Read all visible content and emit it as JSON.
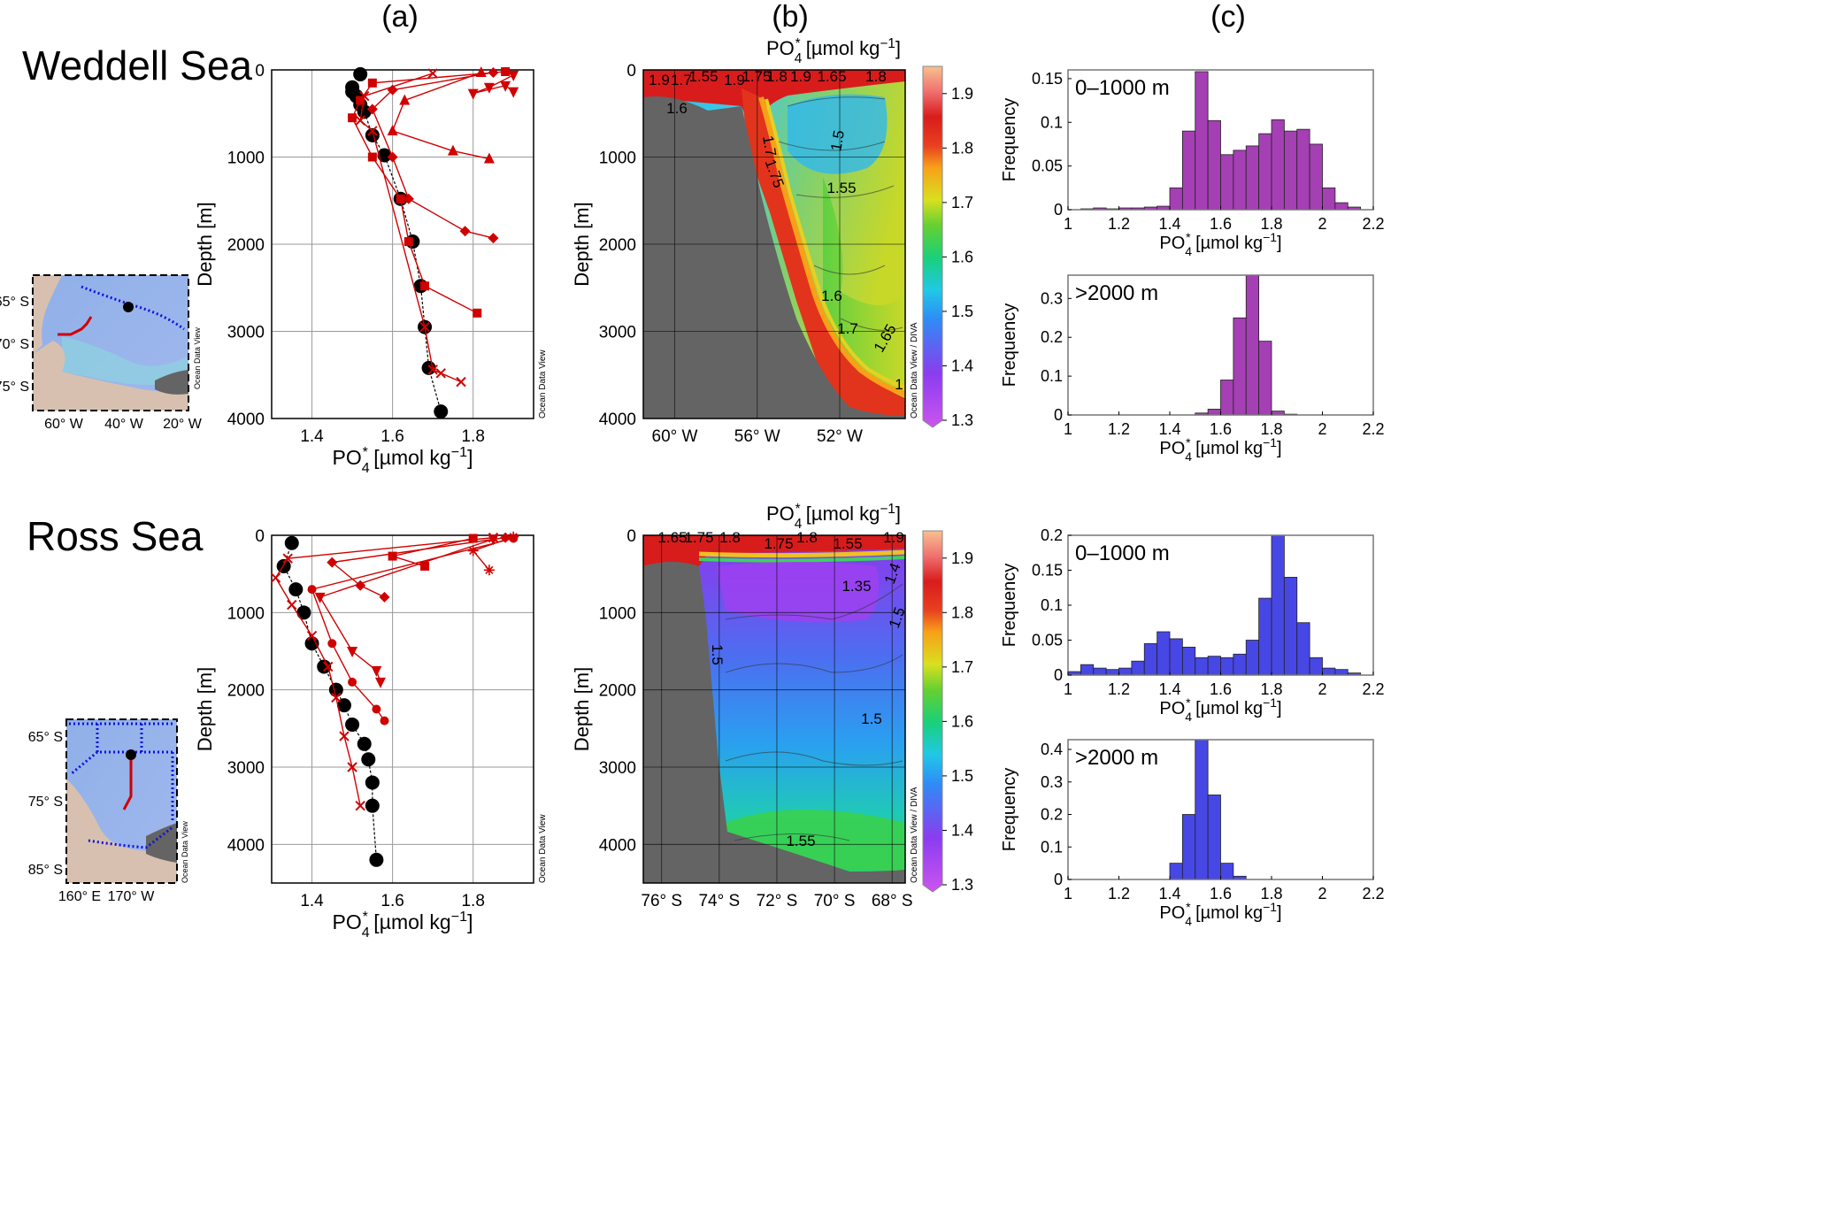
{
  "figure": {
    "column_labels": [
      "(a)",
      "(b)",
      "(c)"
    ],
    "row_titles": [
      "Weddell Sea",
      "Ross Sea"
    ],
    "odv_credit": "Ocean Data View",
    "diva_credit": "Ocean Data View / DIVA",
    "po4_label": "PO4* [µmol kg-1]",
    "depth_label": "Depth [m]",
    "freq_label": "Frequency",
    "colors": {
      "profile_red": "#d00000",
      "mean_black": "#000000",
      "weddell_hist": "#a53fb4",
      "ross_hist": "#4747e6",
      "land": "#646464"
    }
  },
  "maps": [
    {
      "lat_labels": [
        "65° S",
        "70° S",
        "75° S"
      ],
      "lon_labels": [
        "60° W",
        "40° W",
        "20° W"
      ]
    },
    {
      "lat_labels": [
        "65° S",
        "75° S",
        "85° S"
      ],
      "lon_labels": [
        "160° E",
        "170° W"
      ]
    }
  ],
  "chart_data": [
    {
      "panel": "weddell-a",
      "type": "line",
      "xlabel": "PO4* [µmol kg-1]",
      "ylabel": "Depth [m]",
      "xlim": [
        1.3,
        1.95
      ],
      "ylim": [
        4000,
        0
      ],
      "xticks": [
        "1.4",
        "1.6",
        "1.8"
      ],
      "yticks": [
        "0",
        "1000",
        "2000",
        "3000",
        "4000"
      ],
      "grid": true,
      "series": [
        {
          "marker": "circle",
          "color": "#000000",
          "x": [
            1.52,
            1.5,
            1.5,
            1.51,
            1.52,
            1.53,
            1.55,
            1.58,
            1.62,
            1.65,
            1.67,
            1.68,
            1.69,
            1.72
          ],
          "y": [
            50,
            200,
            250,
            300,
            400,
            480,
            750,
            980,
            1480,
            1970,
            2480,
            2950,
            3420,
            3920
          ]
        },
        {
          "marker": "square",
          "color": "#d00000",
          "x": [
            1.88,
            1.55,
            1.52,
            1.5,
            1.55,
            1.62,
            1.64,
            1.68,
            1.81
          ],
          "y": [
            20,
            150,
            350,
            550,
            1000,
            1480,
            1970,
            2480,
            2790
          ]
        },
        {
          "marker": "diamond",
          "color": "#d00000",
          "x": [
            1.85,
            1.6,
            1.55,
            1.6,
            1.64,
            1.78,
            1.85
          ],
          "y": [
            30,
            230,
            450,
            1000,
            1480,
            1850,
            1930
          ]
        },
        {
          "marker": "triangle-up",
          "color": "#d00000",
          "x": [
            1.82,
            1.63,
            1.6,
            1.75,
            1.84
          ],
          "y": [
            30,
            350,
            700,
            930,
            1020
          ]
        },
        {
          "marker": "triangle-down",
          "color": "#d00000",
          "x": [
            1.9,
            1.84,
            1.8,
            1.88,
            1.9
          ],
          "y": [
            60,
            200,
            270,
            180,
            250
          ]
        },
        {
          "marker": "cross",
          "color": "#d00000",
          "x": [
            1.7,
            1.53,
            1.52,
            1.55,
            1.68,
            1.7,
            1.72,
            1.77
          ],
          "y": [
            40,
            300,
            580,
            700,
            2950,
            3440,
            3480,
            3580
          ]
        }
      ]
    },
    {
      "panel": "weddell-b",
      "type": "heatmap",
      "title": "PO4* [µmol kg-1]",
      "ylabel": "Depth [m]",
      "xticks": [
        "60° W",
        "56° W",
        "52° W"
      ],
      "yticks": [
        "0",
        "1000",
        "2000",
        "3000",
        "4000"
      ],
      "ylim": [
        4000,
        0
      ],
      "colorbar": {
        "range": [
          1.3,
          1.95
        ],
        "ticks": [
          "1.3",
          "1.4",
          "1.5",
          "1.6",
          "1.7",
          "1.8",
          "1.9"
        ]
      },
      "contour_labels": [
        "1.9",
        "1.7",
        "1.55",
        "1.9",
        "1.75",
        "1.8",
        "1.9",
        "1.65",
        "1.8",
        "1.6",
        "1.5",
        "1.7",
        "1.75",
        "1.55",
        "1.6",
        "1.7",
        "1.65",
        "1"
      ]
    },
    {
      "panel": "ross-a",
      "type": "line",
      "xlabel": "PO4* [µmol kg-1]",
      "ylabel": "Depth [m]",
      "xlim": [
        1.3,
        1.95
      ],
      "ylim": [
        4500,
        0
      ],
      "xticks": [
        "1.4",
        "1.6",
        "1.8"
      ],
      "yticks": [
        "0",
        "1000",
        "2000",
        "3000",
        "4000"
      ],
      "grid": true,
      "series": [
        {
          "marker": "circle",
          "color": "#000000",
          "x": [
            1.35,
            1.33,
            1.36,
            1.38,
            1.4,
            1.43,
            1.46,
            1.48,
            1.5,
            1.53,
            1.54,
            1.55,
            1.55,
            1.56
          ],
          "y": [
            100,
            400,
            700,
            1000,
            1400,
            1700,
            2000,
            2200,
            2450,
            2700,
            2900,
            3200,
            3500,
            4200
          ]
        },
        {
          "marker": "cross",
          "color": "#d00000",
          "x": [
            1.85,
            1.34,
            1.31,
            1.35,
            1.4,
            1.44,
            1.46,
            1.48,
            1.5,
            1.52
          ],
          "y": [
            30,
            300,
            550,
            900,
            1300,
            1700,
            2100,
            2600,
            3000,
            3500
          ]
        },
        {
          "marker": "circle-small",
          "color": "#d00000",
          "x": [
            1.9,
            1.4,
            1.45,
            1.5,
            1.56,
            1.58
          ],
          "y": [
            40,
            700,
            1400,
            1900,
            2250,
            2400
          ]
        },
        {
          "marker": "triangle-down",
          "color": "#d00000",
          "x": [
            1.85,
            1.42,
            1.5,
            1.56,
            1.57
          ],
          "y": [
            50,
            800,
            1500,
            1750,
            1900
          ]
        },
        {
          "marker": "diamond",
          "color": "#d00000",
          "x": [
            1.88,
            1.45,
            1.52,
            1.58
          ],
          "y": [
            30,
            350,
            650,
            800
          ]
        },
        {
          "marker": "square",
          "color": "#d00000",
          "x": [
            1.8,
            1.6,
            1.68
          ],
          "y": [
            40,
            270,
            400
          ]
        },
        {
          "marker": "asterisk",
          "color": "#d00000",
          "x": [
            1.9,
            1.8,
            1.84
          ],
          "y": [
            20,
            200,
            450
          ]
        }
      ]
    },
    {
      "panel": "ross-b",
      "type": "heatmap",
      "title": "PO4* [µmol kg-1]",
      "ylabel": "Depth [m]",
      "xticks": [
        "76° S",
        "74° S",
        "72° S",
        "70° S",
        "68° S"
      ],
      "yticks": [
        "0",
        "1000",
        "2000",
        "3000",
        "4000"
      ],
      "ylim": [
        4500,
        0
      ],
      "colorbar": {
        "range": [
          1.3,
          1.95
        ],
        "ticks": [
          "1.3",
          "1.4",
          "1.5",
          "1.6",
          "1.7",
          "1.8",
          "1.9"
        ]
      },
      "contour_labels": [
        "1.65",
        "1.75",
        "1.8",
        "1.75",
        "1.8",
        "1.55",
        "1.9",
        "1.4",
        "1.35",
        "1.5",
        "1.5",
        "1.5",
        "1.55"
      ]
    },
    {
      "panel": "weddell-c-shallow",
      "type": "bar",
      "annotation": "0–1000 m",
      "xlabel": "PO4* [µmol kg-1]",
      "ylabel": "Frequency",
      "xlim": [
        1.0,
        2.2
      ],
      "ylim": [
        0,
        0.16
      ],
      "xticks": [
        "1",
        "1.2",
        "1.4",
        "1.6",
        "1.8",
        "2",
        "2.2"
      ],
      "yticks": [
        "0",
        "0.05",
        "0.1",
        "0.15"
      ],
      "bin_width": 0.05,
      "bin_starts": [
        1.0,
        1.05,
        1.1,
        1.15,
        1.2,
        1.25,
        1.3,
        1.35,
        1.4,
        1.45,
        1.5,
        1.55,
        1.6,
        1.65,
        1.7,
        1.75,
        1.8,
        1.85,
        1.9,
        1.95,
        2.0,
        2.05,
        2.1
      ],
      "values": [
        0.0,
        0.001,
        0.002,
        0.001,
        0.002,
        0.002,
        0.003,
        0.004,
        0.025,
        0.09,
        0.158,
        0.102,
        0.063,
        0.068,
        0.073,
        0.087,
        0.103,
        0.09,
        0.092,
        0.075,
        0.025,
        0.008,
        0.003
      ],
      "color": "#a53fb4"
    },
    {
      "panel": "weddell-c-deep",
      "type": "bar",
      "annotation": ">2000 m",
      "xlabel": "PO4* [µmol kg-1]",
      "ylabel": "Frequency",
      "xlim": [
        1.0,
        2.2
      ],
      "ylim": [
        0,
        0.36
      ],
      "xticks": [
        "1",
        "1.2",
        "1.4",
        "1.6",
        "1.8",
        "2",
        "2.2"
      ],
      "yticks": [
        "0",
        "0.1",
        "0.2",
        "0.3"
      ],
      "bin_width": 0.05,
      "bin_starts": [
        1.5,
        1.55,
        1.6,
        1.65,
        1.7,
        1.75,
        1.8,
        1.85
      ],
      "values": [
        0.005,
        0.015,
        0.09,
        0.25,
        0.36,
        0.19,
        0.01,
        0.002
      ],
      "color": "#a53fb4"
    },
    {
      "panel": "ross-c-shallow",
      "type": "bar",
      "annotation": "0–1000 m",
      "xlabel": "PO4* [µmol kg-1]",
      "ylabel": "Frequency",
      "xlim": [
        1.0,
        2.2
      ],
      "ylim": [
        0,
        0.2
      ],
      "xticks": [
        "1",
        "1.2",
        "1.4",
        "1.6",
        "1.8",
        "2",
        "2.2"
      ],
      "yticks": [
        "0",
        "0.05",
        "0.1",
        "0.15",
        "0.2"
      ],
      "bin_width": 0.05,
      "bin_starts": [
        1.0,
        1.05,
        1.1,
        1.15,
        1.2,
        1.25,
        1.3,
        1.35,
        1.4,
        1.45,
        1.5,
        1.55,
        1.6,
        1.65,
        1.7,
        1.75,
        1.8,
        1.85,
        1.9,
        1.95,
        2.0,
        2.05,
        2.1
      ],
      "values": [
        0.005,
        0.015,
        0.01,
        0.008,
        0.01,
        0.02,
        0.045,
        0.062,
        0.052,
        0.04,
        0.025,
        0.027,
        0.025,
        0.03,
        0.05,
        0.11,
        0.2,
        0.14,
        0.075,
        0.025,
        0.01,
        0.008,
        0.003
      ],
      "color": "#4747e6"
    },
    {
      "panel": "ross-c-deep",
      "type": "bar",
      "annotation": ">2000 m",
      "xlabel": "PO4* [µmol kg-1]",
      "ylabel": "Frequency",
      "xlim": [
        1.0,
        2.2
      ],
      "ylim": [
        0,
        0.43
      ],
      "xticks": [
        "1",
        "1.2",
        "1.4",
        "1.6",
        "1.8",
        "2",
        "2.2"
      ],
      "yticks": [
        "0",
        "0.1",
        "0.2",
        "0.3",
        "0.4"
      ],
      "bin_width": 0.05,
      "bin_starts": [
        1.4,
        1.45,
        1.5,
        1.55,
        1.6,
        1.65
      ],
      "values": [
        0.05,
        0.2,
        0.43,
        0.26,
        0.05,
        0.01
      ],
      "color": "#4747e6"
    }
  ]
}
